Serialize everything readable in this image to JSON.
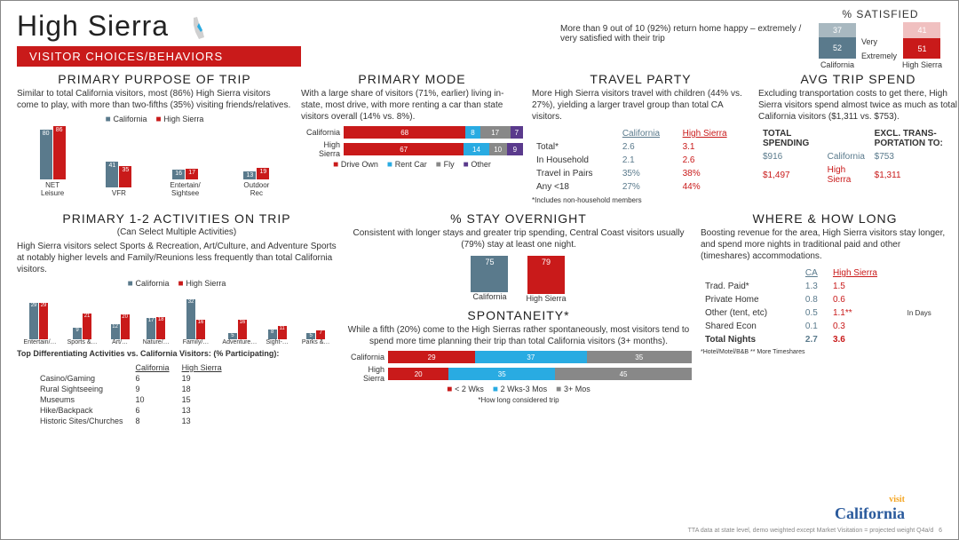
{
  "title": "High Sierra",
  "section": "VISITOR CHOICES/BEHAVIORS",
  "sat": {
    "heading": "% SATISFIED",
    "text": "More than 9 out of 10 (92%) return home happy – extremely / very satisfied with their trip",
    "labels": {
      "very": "Very",
      "ext": "Extremely",
      "ca": "California",
      "hs": "High Sierra"
    },
    "ca": {
      "very": 37,
      "ext": 52
    },
    "hs": {
      "very": 41,
      "ext": 51
    },
    "colors": {
      "ca_very": "#a8b8c0",
      "ca_ext": "#5a7a8c",
      "hs_very": "#f0c0c0",
      "hs_ext": "#c91a1a"
    }
  },
  "purpose": {
    "heading": "PRIMARY PURPOSE OF TRIP",
    "text": "Similar to total California visitors, most (86%) High Sierra visitors come to play, with more than two-fifths (35%) visiting friends/relatives.",
    "cats": [
      "NET Leisure",
      "VFR",
      "Entertain/ Sightsee",
      "Outdoor Rec"
    ],
    "ca": [
      80,
      41,
      16,
      13
    ],
    "hs": [
      86,
      35,
      17,
      19
    ],
    "colors": {
      "ca": "#5a7a8c",
      "hs": "#c91a1a"
    }
  },
  "mode": {
    "heading": "PRIMARY MODE",
    "text": "With a large share of visitors (71%, earlier) living in-state, most drive, with more renting  a car than state visitors overall (14% vs. 8%).",
    "rows": [
      "California",
      "High Sierra"
    ],
    "segs": [
      "Drive Own",
      "Rent Car",
      "Fly",
      "Other"
    ],
    "data": [
      [
        68,
        8,
        17,
        7
      ],
      [
        67,
        14,
        10,
        9
      ]
    ],
    "colors": [
      "#c91a1a",
      "#29abe2",
      "#888888",
      "#5a3a8c"
    ]
  },
  "party": {
    "heading": "TRAVEL PARTY",
    "text": "More High Sierra visitors travel with children (44% vs. 27%), yielding a larger travel group than total CA visitors.",
    "cols": [
      "California",
      "High Sierra"
    ],
    "rows": [
      [
        "Total*",
        "2.6",
        "3.1"
      ],
      [
        "In Household",
        "2.1",
        "2.6"
      ],
      [
        "Travel in Pairs",
        "35%",
        "38%"
      ],
      [
        "Any <18",
        "27%",
        "44%"
      ]
    ],
    "note": "*Includes non-household members"
  },
  "spend": {
    "heading": "AVG TRIP SPEND",
    "text": "Excluding transportation costs to get there, High Sierra visitors spend almost twice as much as total California visitors ($1,311 vs. $753).",
    "total_lbl": "TOTAL SPENDING",
    "excl_lbl": "EXCL. TRANS-PORTATION TO:",
    "ca": {
      "lbl": "California",
      "total": "$916",
      "excl": "$753"
    },
    "hs": {
      "lbl": "High Sierra",
      "total": "$1,497",
      "excl": "$1,311"
    }
  },
  "activities": {
    "heading": "PRIMARY 1-2 ACTIVITIES ON TRIP",
    "sub": "(Can Select Multiple Activities)",
    "text": "High Sierra visitors select Sports & Recreation, Art/Culture, and Adventure Sports at notably higher levels and Family/Reunions less frequently than total California visitors.",
    "cats": [
      "Entertain/…",
      "Sports &…",
      "Art/…",
      "Nature/…",
      "Family/…",
      "Adventure…",
      "Sight-…",
      "Parks &…"
    ],
    "ca": [
      29,
      9,
      12,
      17,
      32,
      5,
      8,
      5
    ],
    "hs": [
      29,
      21,
      20,
      18,
      16,
      16,
      11,
      7
    ],
    "diff_heading": "Top Differentiating Activities vs. California Visitors:  (% Participating):",
    "diff_cols": [
      "California",
      "High Sierra"
    ],
    "diff": [
      [
        "Casino/Gaming",
        "6",
        "19"
      ],
      [
        "Rural Sightseeing",
        "9",
        "18"
      ],
      [
        "Museums",
        "10",
        "15"
      ],
      [
        "Hike/Backpack",
        "6",
        "13"
      ],
      [
        "Historic Sites/Churches",
        "8",
        "13"
      ]
    ]
  },
  "overnight": {
    "heading": "% STAY OVERNIGHT",
    "text": "Consistent with longer stays and greater trip spending, Central Coast visitors usually (79%) stay at least one night.",
    "ca": {
      "lbl": "California",
      "v": 75
    },
    "hs": {
      "lbl": "High Sierra",
      "v": 79
    },
    "colors": {
      "ca": "#5a7a8c",
      "hs": "#c91a1a"
    }
  },
  "spont": {
    "heading": "SPONTANEITY*",
    "text": "While a fifth (20%) come to the High Sierras rather spontaneously, most visitors tend to spend more time planning their trip than total California visitors (3+ months).",
    "rows": [
      "California",
      "High Sierra"
    ],
    "segs": [
      "< 2 Wks",
      "2 Wks-3 Mos",
      "3+ Mos"
    ],
    "data": [
      [
        29,
        37,
        35
      ],
      [
        20,
        35,
        45
      ]
    ],
    "colors": [
      "#c91a1a",
      "#29abe2",
      "#888888"
    ],
    "note": "*How long considered trip"
  },
  "where": {
    "heading": "WHERE & HOW LONG",
    "text": "Boosting revenue for the area, High Sierra visitors stay longer, and spend more nights in traditional paid and other (timeshares) accommodations.",
    "cols": [
      "CA",
      "High Sierra"
    ],
    "unit": "In Days",
    "rows": [
      [
        "Trad. Paid*",
        "1.3",
        "1.5"
      ],
      [
        "Private Home",
        "0.8",
        "0.6"
      ],
      [
        "Other (tent, etc)",
        "0.5",
        "1.1**"
      ],
      [
        "Shared Econ",
        "0.1",
        "0.3"
      ]
    ],
    "total": [
      "Total Nights",
      "2.7",
      "3.6"
    ],
    "note": "*Hotel/Motel/B&B ** More Timeshares"
  },
  "footer": "TTA data at state level, demo weighted except Market Visitation = projected weight Q4a/d",
  "page": "6",
  "logo": {
    "top": "visit",
    "bot": "California"
  }
}
